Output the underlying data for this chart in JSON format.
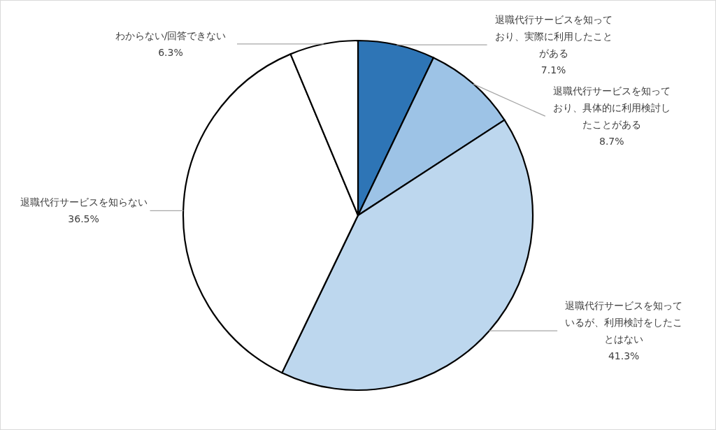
{
  "chart_data": {
    "type": "pie",
    "categories": [
      "退職代行サービスを知っており、実際に利用したことがある",
      "退職代行サービスを知っており、具体的に利用検討したことがある",
      "退職代行サービスを知っているが、利用検討をしたことはない",
      "退職代行サービスを知らない",
      "わからない/回答できない"
    ],
    "values": [
      7.1,
      8.7,
      41.3,
      36.5,
      6.3
    ],
    "colors": [
      "#2e75b6",
      "#9dc3e6",
      "#bdd7ee",
      "#ffffff",
      "#ffffff"
    ],
    "value_labels": [
      "7.1%",
      "8.7%",
      "41.3%",
      "36.5%",
      "6.3%"
    ]
  }
}
